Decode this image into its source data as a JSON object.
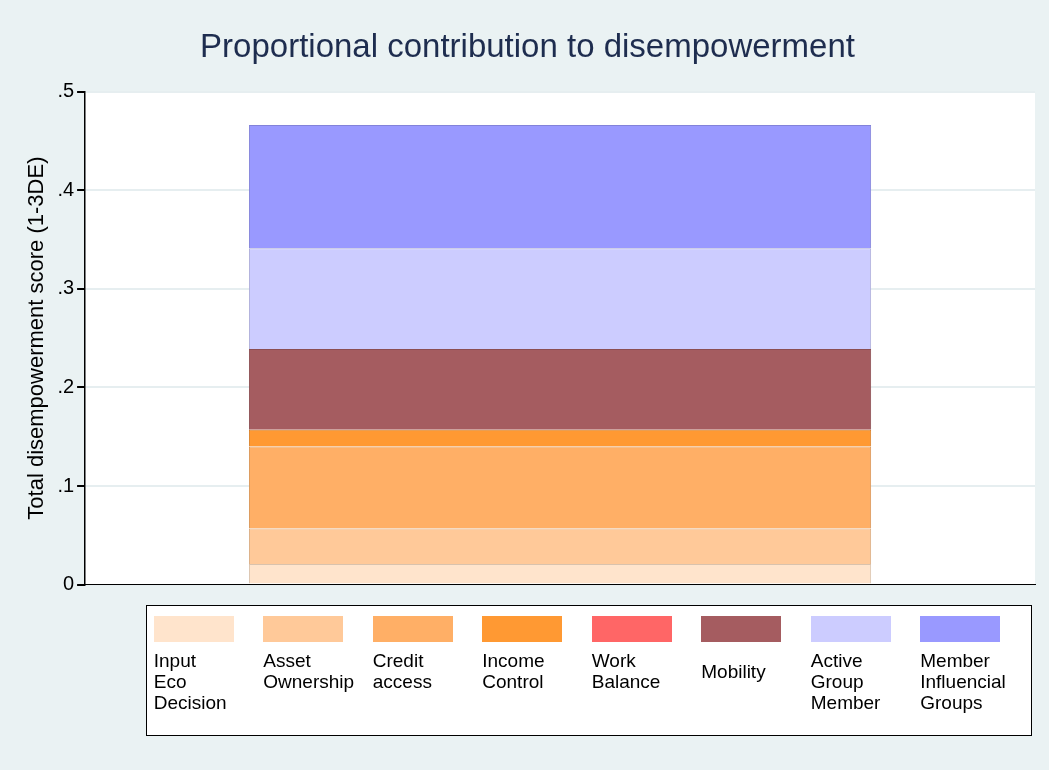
{
  "chart_data": {
    "type": "bar",
    "stacked": true,
    "title": "Proportional contribution to disempowerment",
    "ylabel": "Total disempowerment score (1-3DE)",
    "categories": [
      null
    ],
    "series": [
      {
        "name": "Input Eco Decision",
        "color": "#ffe4cc",
        "values": [
          0.021
        ]
      },
      {
        "name": "Asset Ownership",
        "color": "#ffc999",
        "values": [
          0.036
        ]
      },
      {
        "name": "Credit access",
        "color": "#ffaf66",
        "values": [
          0.083
        ]
      },
      {
        "name": "Income Control",
        "color": "#ff9933",
        "values": [
          0.017
        ]
      },
      {
        "name": "Work Balance",
        "color": "#ff6666",
        "values": [
          0
        ]
      },
      {
        "name": "Mobility",
        "color": "#a55c60",
        "values": [
          0.082
        ]
      },
      {
        "name": "Active Group Member",
        "color": "#ccccff",
        "values": [
          0.102
        ]
      },
      {
        "name": "Member Influencial Groups",
        "color": "#9999ff",
        "values": [
          0.125
        ]
      }
    ],
    "ylim": [
      0,
      0.5
    ],
    "yticks": [
      {
        "value": 0,
        "label": "0"
      },
      {
        "value": 0.1,
        "label": ".1"
      },
      {
        "value": 0.2,
        "label": ".2"
      },
      {
        "value": 0.3,
        "label": ".3"
      },
      {
        "value": 0.4,
        "label": ".4"
      },
      {
        "value": 0.5,
        "label": ".5"
      }
    ],
    "grid": "y",
    "legend": "bottom"
  }
}
